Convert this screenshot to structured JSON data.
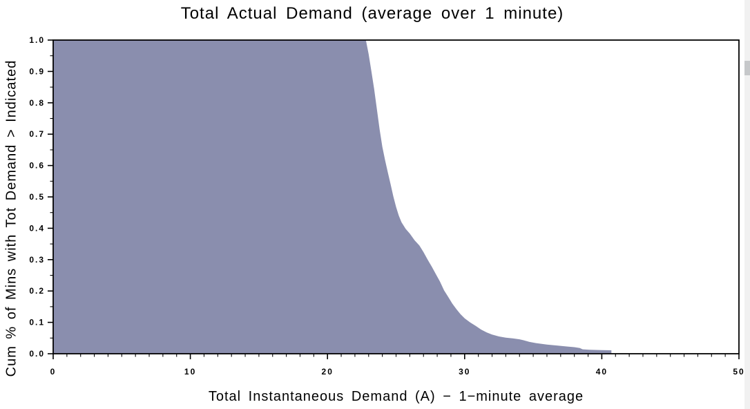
{
  "chart_data": {
    "type": "area",
    "title": "Total Actual Demand (average over 1 minute)",
    "xlabel": "Total Instantaneous Demand (A) − 1−minute average",
    "ylabel": "Cum % of Mins with Tot Demand > Indicated",
    "xlim": [
      0,
      50
    ],
    "ylim": [
      0.0,
      1.0
    ],
    "x_major_ticks": [
      0,
      10,
      20,
      30,
      40,
      50
    ],
    "x_tick_labels": [
      "0",
      "10",
      "20",
      "30",
      "40",
      "50"
    ],
    "x_minor_step": 1,
    "y_major_ticks": [
      0.0,
      0.1,
      0.2,
      0.3,
      0.4,
      0.5,
      0.6,
      0.7,
      0.8,
      0.9,
      1.0
    ],
    "y_tick_labels": [
      "0.0",
      "0.1",
      "0.2",
      "0.3",
      "0.4",
      "0.5",
      "0.6",
      "0.7",
      "0.8",
      "0.9",
      "1.0"
    ],
    "y_minor_step": 0.05,
    "grid": false,
    "legend": "none",
    "fill_color": "#8A8EAE",
    "axis_color": "#000000",
    "points": [
      [
        0,
        1.0
      ],
      [
        22.8,
        1.0
      ],
      [
        23.0,
        0.955
      ],
      [
        23.2,
        0.9
      ],
      [
        23.4,
        0.845
      ],
      [
        23.6,
        0.78
      ],
      [
        23.8,
        0.715
      ],
      [
        24.0,
        0.66
      ],
      [
        24.2,
        0.617
      ],
      [
        24.4,
        0.578
      ],
      [
        24.6,
        0.54
      ],
      [
        24.8,
        0.502
      ],
      [
        25.0,
        0.468
      ],
      [
        25.2,
        0.44
      ],
      [
        25.4,
        0.419
      ],
      [
        25.7,
        0.398
      ],
      [
        26.0,
        0.383
      ],
      [
        26.35,
        0.362
      ],
      [
        26.7,
        0.345
      ],
      [
        27.0,
        0.324
      ],
      [
        27.3,
        0.3
      ],
      [
        27.6,
        0.278
      ],
      [
        27.9,
        0.254
      ],
      [
        28.2,
        0.23
      ],
      [
        28.5,
        0.202
      ],
      [
        28.8,
        0.181
      ],
      [
        29.1,
        0.16
      ],
      [
        29.4,
        0.142
      ],
      [
        29.7,
        0.126
      ],
      [
        30.0,
        0.113
      ],
      [
        30.4,
        0.1
      ],
      [
        30.8,
        0.089
      ],
      [
        31.2,
        0.077
      ],
      [
        31.6,
        0.068
      ],
      [
        32.0,
        0.061
      ],
      [
        32.5,
        0.055
      ],
      [
        33.0,
        0.051
      ],
      [
        33.5,
        0.049
      ],
      [
        34.0,
        0.046
      ],
      [
        34.3,
        0.043
      ],
      [
        34.7,
        0.038
      ],
      [
        35.2,
        0.034
      ],
      [
        36.0,
        0.029
      ],
      [
        36.8,
        0.026
      ],
      [
        37.5,
        0.023
      ],
      [
        38.0,
        0.021
      ],
      [
        38.4,
        0.018
      ],
      [
        38.6,
        0.014
      ],
      [
        39.1,
        0.0125
      ],
      [
        40.0,
        0.0115
      ],
      [
        40.7,
        0.011
      ]
    ]
  },
  "scrollbar": {
    "orientation": "vertical",
    "track_color": "#f1f1f1",
    "thumb_color": "#c6c8ca"
  }
}
